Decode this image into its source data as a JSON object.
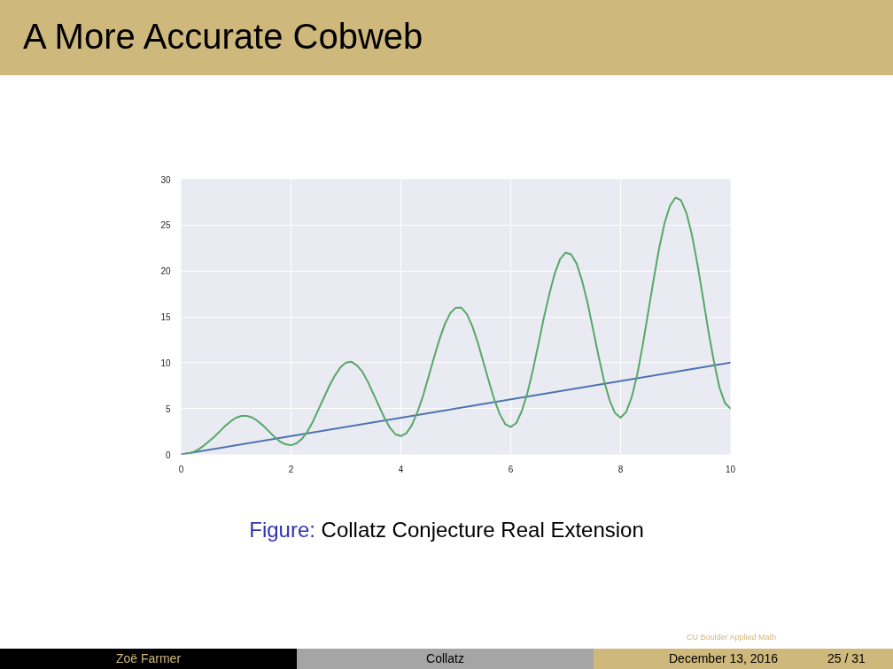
{
  "chart_data": {
    "type": "line",
    "title": "A More Accurate Cobweb",
    "annotations": [
      "Figure: Collatz Conjecture Real Extension",
      "Zoë Farmer",
      "Collatz",
      "December 13, 2016",
      "25 / 31",
      "CU Boulder Applied Math"
    ],
    "xlim": [
      0,
      10
    ],
    "ylim": [
      0,
      30
    ],
    "xticks": [
      0,
      2,
      4,
      6,
      8,
      10
    ],
    "yticks": [
      0,
      5,
      10,
      15,
      20,
      25,
      30
    ],
    "grid": true,
    "x": [
      0.0,
      0.1,
      0.2,
      0.3,
      0.4,
      0.5,
      0.6,
      0.7,
      0.8,
      0.9,
      1.0,
      1.1,
      1.2,
      1.3,
      1.4,
      1.5,
      1.6,
      1.7,
      1.8,
      1.9,
      2.0,
      2.1,
      2.2,
      2.3,
      2.4,
      2.5,
      2.6,
      2.7,
      2.8,
      2.9,
      3.0,
      3.1,
      3.2,
      3.3,
      3.4,
      3.5,
      3.6,
      3.7,
      3.8,
      3.9,
      4.0,
      4.1,
      4.2,
      4.3,
      4.4,
      4.5,
      4.6,
      4.7,
      4.8,
      4.9,
      5.0,
      5.1,
      5.2,
      5.3,
      5.4,
      5.5,
      5.6,
      5.7,
      5.8,
      5.9,
      6.0,
      6.1,
      6.2,
      6.3,
      6.4,
      6.5,
      6.6,
      6.7,
      6.8,
      6.9,
      7.0,
      7.1,
      7.2,
      7.3,
      7.4,
      7.5,
      7.6,
      7.7,
      7.8,
      7.9,
      8.0,
      8.1,
      8.2,
      8.3,
      8.4,
      8.5,
      8.6,
      8.7,
      8.8,
      8.9,
      9.0,
      9.1,
      9.2,
      9.3,
      9.4,
      9.5,
      9.6,
      9.7,
      9.8,
      9.9,
      10.0
    ],
    "series": [
      {
        "color": "#4c72b0",
        "x": [
          0,
          10
        ],
        "values": [
          0,
          10
        ]
      },
      {
        "color": "#55a868",
        "values": [
          0,
          0.1,
          0.2,
          0.5,
          0.9,
          1.4,
          1.9,
          2.5,
          3.1,
          3.6,
          4.0,
          4.2,
          4.2,
          4.0,
          3.6,
          3.1,
          2.5,
          1.9,
          1.4,
          1.1,
          1.0,
          1.2,
          1.7,
          2.5,
          3.6,
          4.9,
          6.2,
          7.5,
          8.6,
          9.5,
          10.0,
          10.1,
          9.7,
          9.0,
          7.9,
          6.6,
          5.3,
          4.0,
          2.9,
          2.2,
          2.0,
          2.3,
          3.2,
          4.6,
          6.3,
          8.4,
          10.5,
          12.5,
          14.2,
          15.4,
          16.0,
          16.0,
          15.3,
          14.0,
          12.2,
          10.1,
          8.0,
          6.0,
          4.4,
          3.3,
          3.0,
          3.4,
          4.7,
          6.6,
          9.1,
          11.9,
          14.8,
          17.4,
          19.7,
          21.3,
          22.0,
          21.8,
          20.8,
          18.9,
          16.5,
          13.6,
          10.7,
          8.0,
          5.9,
          4.5,
          4.0,
          4.6,
          6.2,
          8.6,
          11.8,
          15.4,
          19.0,
          22.4,
          25.2,
          27.1,
          28.0,
          27.7,
          26.3,
          23.9,
          20.7,
          17.1,
          13.4,
          10.1,
          7.3,
          5.6,
          5.0
        ]
      }
    ]
  }
}
